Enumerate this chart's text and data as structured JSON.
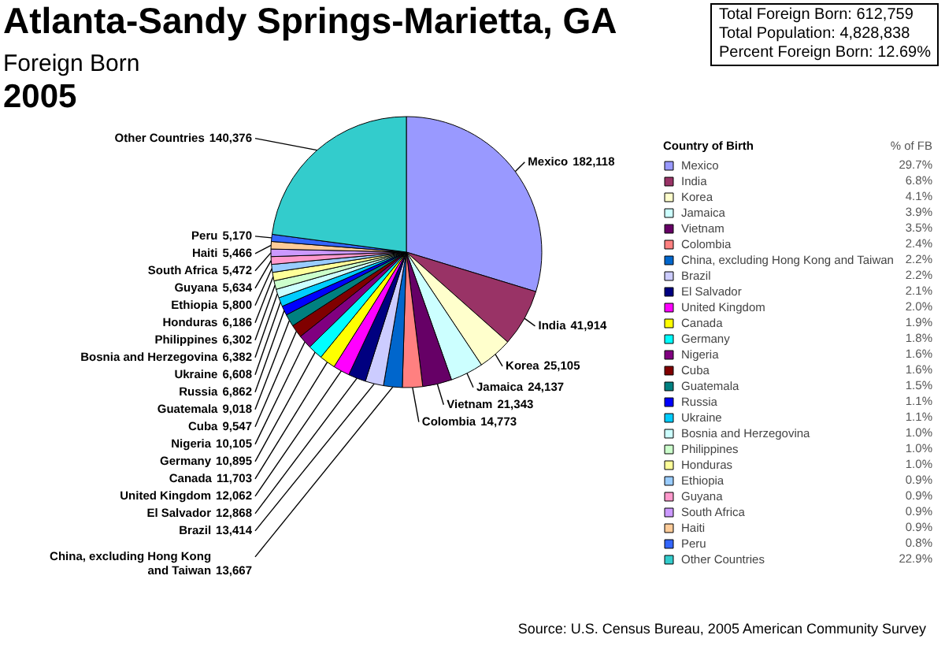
{
  "chart_data": {
    "type": "pie",
    "title": "Atlanta-Sandy Springs-Marietta, GA",
    "subtitle": "Foreign Born",
    "categories": [
      "Mexico",
      "India",
      "Korea",
      "Jamaica",
      "Vietnam",
      "Colombia",
      "China, excluding Hong Kong and Taiwan",
      "Brazil",
      "El Salvador",
      "United Kingdom",
      "Canada",
      "Germany",
      "Nigeria",
      "Cuba",
      "Guatemala",
      "Russia",
      "Ukraine",
      "Bosnia and Herzegovina",
      "Philippines",
      "Honduras",
      "Ethiopia",
      "Guyana",
      "South Africa",
      "Haiti",
      "Peru",
      "Other Countries"
    ],
    "values": [
      182118,
      41914,
      25105,
      24137,
      21343,
      14773,
      13667,
      13414,
      12868,
      12062,
      11703,
      10895,
      10105,
      9547,
      9018,
      6862,
      6608,
      6382,
      6302,
      6186,
      5800,
      5634,
      5472,
      5466,
      5170,
      140376
    ],
    "colors": [
      "#9999ff",
      "#993366",
      "#ffffcc",
      "#ccffff",
      "#660066",
      "#ff8080",
      "#0066cc",
      "#ccccff",
      "#000080",
      "#ff00ff",
      "#ffff00",
      "#00ffff",
      "#800080",
      "#800000",
      "#008080",
      "#0000ff",
      "#00ccff",
      "#ccffff",
      "#ccffcc",
      "#ffff99",
      "#99ccff",
      "#ff99cc",
      "#cc99ff",
      "#ffcc99",
      "#3366ff",
      "#33cccc"
    ],
    "value_labels": [
      "182,118",
      "41,914",
      "25,105",
      "24,137",
      "21,343",
      "14,773",
      "13,667",
      "13,414",
      "12,868",
      "12,062",
      "11,703",
      "10,895",
      "10,105",
      "9,547",
      "9,018",
      "6,862",
      "6,608",
      "6,382",
      "6,302",
      "6,186",
      "5,800",
      "5,634",
      "5,472",
      "5,466",
      "5,170",
      "140,376"
    ],
    "legend": "right",
    "legend_title": "Country of Birth",
    "annotations": [
      "Total Foreign Born: 612,759",
      "Total Population: 4,828,838",
      "Percent Foreign Born: 12.69%",
      "2005",
      "Source: U.S. Census Bureau, 2005 American Community Survey",
      "% of FB",
      "29.7%",
      "6.8%",
      "4.1%",
      "3.9%",
      "3.5%",
      "2.4%",
      "2.2%",
      "2.2%",
      "2.1%",
      "2.0%",
      "1.9%",
      "1.8%",
      "1.6%",
      "1.6%",
      "1.5%",
      "1.1%",
      "1.1%",
      "1.0%",
      "1.0%",
      "1.0%",
      "0.9%",
      "0.9%",
      "0.9%",
      "0.9%",
      "0.8%",
      "22.9%"
    ]
  }
}
